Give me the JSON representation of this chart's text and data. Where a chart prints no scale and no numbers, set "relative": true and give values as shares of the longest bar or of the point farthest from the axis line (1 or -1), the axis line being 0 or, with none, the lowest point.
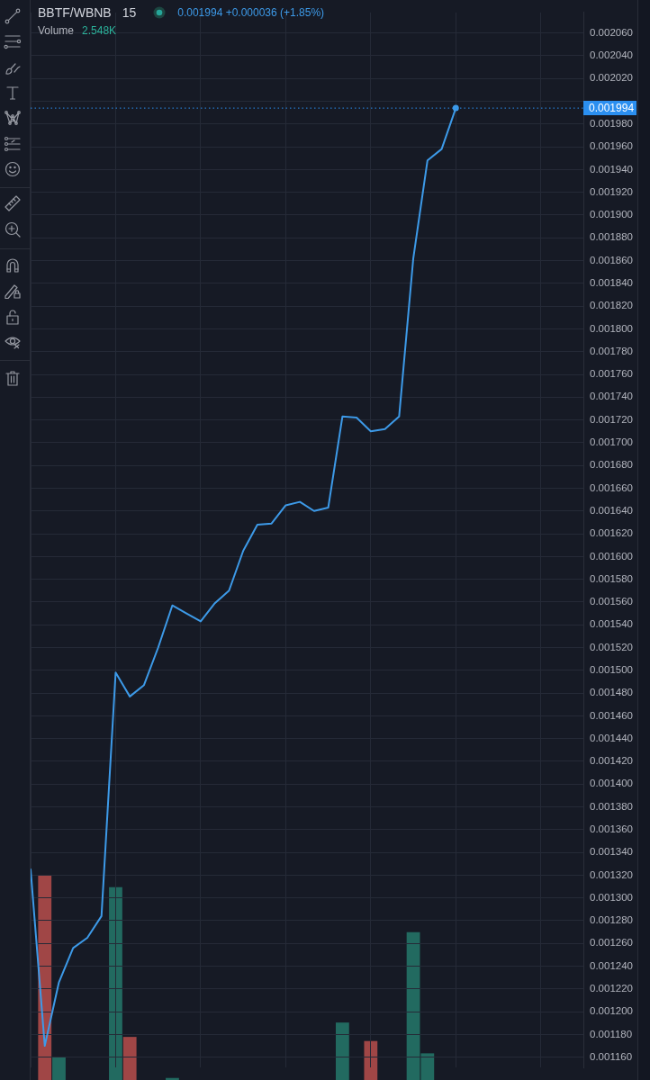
{
  "chart_data": [
    {
      "type": "line",
      "title": "BBTF/WBNB",
      "subtitle": "15",
      "annotations": [
        "0.001994 +0.000036 (+1.85%)"
      ],
      "categories": [
        null,
        null,
        null,
        null,
        null,
        null,
        null,
        null,
        null,
        null,
        null,
        null,
        null,
        null,
        null,
        null,
        null,
        null,
        null,
        null,
        null,
        null,
        null,
        null,
        null,
        null,
        null,
        null,
        null,
        null,
        null,
        null,
        null,
        null,
        null,
        null,
        null,
        null,
        null,
        null
      ],
      "series": [
        {
          "color": "#3d9ae8",
          "values": [
            0.001325,
            0.00117,
            0.001226,
            0.001256,
            0.001265,
            0.001284,
            0.001498,
            0.001477,
            0.001487,
            0.00152,
            0.001557,
            0.00155,
            0.001543,
            0.001559,
            0.00157,
            0.001605,
            0.001628,
            0.001629,
            0.001645,
            0.001648,
            0.00164,
            0.001643,
            0.001723,
            0.001722,
            0.00171,
            0.001712,
            0.001723,
            0.001862,
            0.001948,
            0.001958,
            0.001994,
            null,
            null,
            null,
            null,
            null,
            null,
            null,
            null,
            null
          ]
        }
      ],
      "ylim": [
        0.001151,
        0.002078
      ],
      "yticks": [
        {
          "value": 0.00116,
          "label": "0.001160"
        },
        {
          "value": 0.00118,
          "label": "0.001180"
        },
        {
          "value": 0.0012,
          "label": "0.001200"
        },
        {
          "value": 0.00122,
          "label": "0.001220"
        },
        {
          "value": 0.00124,
          "label": "0.001240"
        },
        {
          "value": 0.00126,
          "label": "0.001260"
        },
        {
          "value": 0.00128,
          "label": "0.001280"
        },
        {
          "value": 0.0013,
          "label": "0.001300"
        },
        {
          "value": 0.00132,
          "label": "0.001320"
        },
        {
          "value": 0.00134,
          "label": "0.001340"
        },
        {
          "value": 0.00136,
          "label": "0.001360"
        },
        {
          "value": 0.00138,
          "label": "0.001380"
        },
        {
          "value": 0.0014,
          "label": "0.001400"
        },
        {
          "value": 0.00142,
          "label": "0.001420"
        },
        {
          "value": 0.00144,
          "label": "0.001440"
        },
        {
          "value": 0.00146,
          "label": "0.001460"
        },
        {
          "value": 0.00148,
          "label": "0.001480"
        },
        {
          "value": 0.0015,
          "label": "0.001500"
        },
        {
          "value": 0.00152,
          "label": "0.001520"
        },
        {
          "value": 0.00154,
          "label": "0.001540"
        },
        {
          "value": 0.00156,
          "label": "0.001560"
        },
        {
          "value": 0.00158,
          "label": "0.001580"
        },
        {
          "value": 0.0016,
          "label": "0.001600"
        },
        {
          "value": 0.00162,
          "label": "0.001620"
        },
        {
          "value": 0.00164,
          "label": "0.001640"
        },
        {
          "value": 0.00166,
          "label": "0.001660"
        },
        {
          "value": 0.00168,
          "label": "0.001680"
        },
        {
          "value": 0.0017,
          "label": "0.001700"
        },
        {
          "value": 0.00172,
          "label": "0.001720"
        },
        {
          "value": 0.00174,
          "label": "0.001740"
        },
        {
          "value": 0.00176,
          "label": "0.001760"
        },
        {
          "value": 0.00178,
          "label": "0.001780"
        },
        {
          "value": 0.0018,
          "label": "0.001800"
        },
        {
          "value": 0.00182,
          "label": "0.001820"
        },
        {
          "value": 0.00184,
          "label": "0.001840"
        },
        {
          "value": 0.00186,
          "label": "0.001860"
        },
        {
          "value": 0.00188,
          "label": "0.001880"
        },
        {
          "value": 0.0019,
          "label": "0.001900"
        },
        {
          "value": 0.00192,
          "label": "0.001920"
        },
        {
          "value": 0.00194,
          "label": "0.001940"
        },
        {
          "value": 0.00196,
          "label": "0.001960"
        },
        {
          "value": 0.00198,
          "label": "0.001980"
        },
        {
          "value": 0.002,
          "label": null
        },
        {
          "value": 0.00202,
          "label": "0.002020"
        },
        {
          "value": 0.00204,
          "label": "0.002040"
        },
        {
          "value": 0.00206,
          "label": "0.002060"
        }
      ],
      "grid": true,
      "ref_lines": [
        {
          "axis": "y",
          "value": 0.001994,
          "label": "0.001994",
          "color": "#2b8ff0",
          "line_style": "dotted"
        }
      ]
    },
    {
      "type": "bar",
      "title": "Volume",
      "annotations": [
        "2.548K"
      ],
      "relative": true,
      "categories": [
        null,
        null,
        null,
        null,
        null,
        null,
        null,
        null,
        null,
        null,
        null,
        null,
        null,
        null,
        null,
        null,
        null,
        null,
        null,
        null,
        null,
        null,
        null,
        null,
        null,
        null,
        null,
        null,
        null,
        null,
        null,
        null,
        null,
        null,
        null,
        null,
        null,
        null,
        null,
        null
      ],
      "values": [
        null,
        1,
        0.11,
        null,
        null,
        null,
        0.94,
        0.21,
        null,
        null,
        0.01,
        null,
        null,
        null,
        null,
        null,
        null,
        null,
        null,
        null,
        null,
        null,
        0.28,
        null,
        0.19,
        null,
        null,
        0.72,
        0.13,
        null,
        null,
        null,
        null,
        null,
        null,
        null,
        null,
        null,
        null,
        null
      ],
      "colors": [
        null,
        "#a04646",
        "#226a60",
        null,
        null,
        null,
        "#226a60",
        "#a04646",
        null,
        null,
        "#226a60",
        null,
        null,
        null,
        null,
        null,
        null,
        null,
        null,
        null,
        null,
        null,
        "#226a60",
        null,
        "#a04646",
        null,
        null,
        "#226a60",
        "#226a60",
        null,
        null,
        null,
        null,
        null,
        null,
        null,
        null,
        null,
        null,
        null
      ]
    }
  ]
}
